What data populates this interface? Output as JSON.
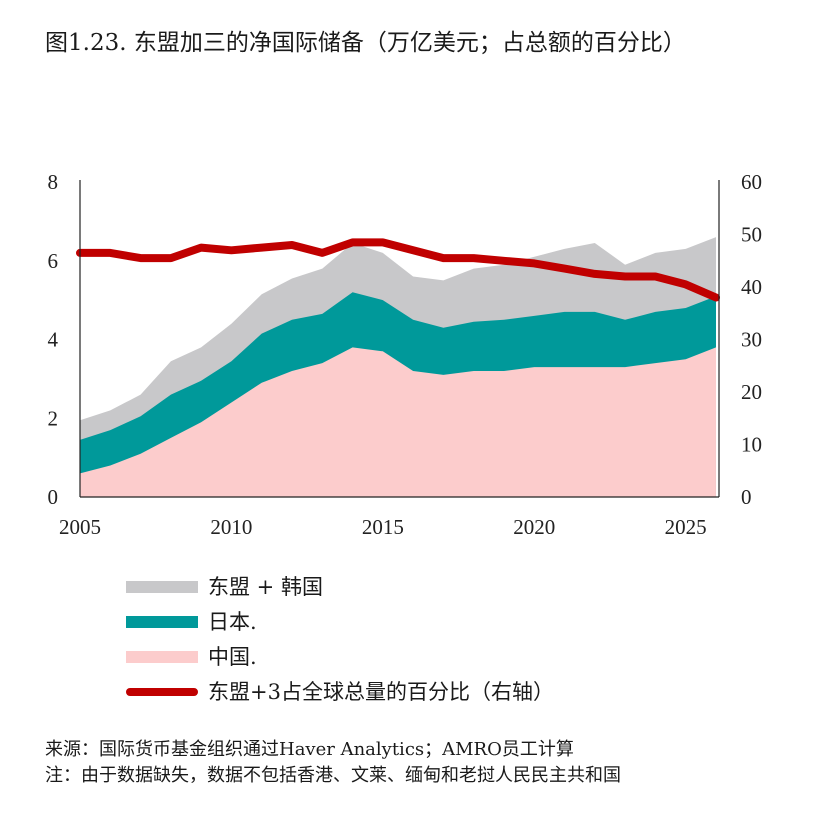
{
  "title": "图1.23. 东盟加三的净国际储备（万亿美元；占总额的百分比）",
  "notes": {
    "source": "来源：国际货币基金组织通过Haver Analytics；AMRO员工计算",
    "note": "注：由于数据缺失，数据不包括香港、文莱、缅甸和老挝人民民主共和国"
  },
  "chart_data": {
    "type": "area",
    "x_ticks": [
      2005,
      2010,
      2015,
      2020,
      2025
    ],
    "xlim": [
      2005,
      2026.1
    ],
    "y_left_ticks": [
      0,
      2,
      4,
      6,
      8
    ],
    "ylim_left": [
      0,
      8
    ],
    "y_right_ticks": [
      0,
      10,
      20,
      30,
      40,
      50,
      60
    ],
    "ylim_right": [
      0,
      60
    ],
    "x": [
      2005,
      2006,
      2007,
      2008,
      2009,
      2010,
      2011,
      2012,
      2013,
      2014,
      2015,
      2016,
      2017,
      2018,
      2019,
      2020,
      2021,
      2022,
      2023,
      2024,
      2025,
      2026
    ],
    "series": [
      {
        "name": "中国.",
        "axis": "left",
        "color": "#fccccc",
        "values": [
          0.6,
          0.8,
          1.1,
          1.5,
          1.9,
          2.4,
          2.9,
          3.2,
          3.4,
          3.8,
          3.7,
          3.2,
          3.1,
          3.2,
          3.2,
          3.3,
          3.3,
          3.3,
          3.3,
          3.4,
          3.5,
          3.8
        ]
      },
      {
        "name": "日本.",
        "axis": "left",
        "color": "#00999a",
        "values": [
          1.45,
          1.7,
          2.05,
          2.6,
          2.95,
          3.45,
          4.15,
          4.5,
          4.65,
          5.2,
          5.0,
          4.5,
          4.3,
          4.45,
          4.5,
          4.6,
          4.7,
          4.7,
          4.5,
          4.7,
          4.8,
          5.1
        ]
      },
      {
        "name": "东盟 + 韩国",
        "axis": "left",
        "color": "#c8c8ca",
        "values": [
          1.95,
          2.2,
          2.6,
          3.45,
          3.8,
          4.4,
          5.15,
          5.55,
          5.8,
          6.45,
          6.2,
          5.6,
          5.5,
          5.8,
          5.9,
          6.1,
          6.3,
          6.45,
          5.9,
          6.2,
          6.3,
          6.6
        ]
      },
      {
        "name": "东盟+3占全球总量的百分比（右轴）",
        "axis": "right",
        "type": "line",
        "color": "#c00000",
        "values": [
          46.5,
          46.5,
          45.5,
          45.5,
          47.5,
          47.0,
          47.5,
          48.0,
          46.5,
          48.5,
          48.5,
          47.0,
          45.5,
          45.5,
          45.0,
          44.5,
          43.5,
          42.5,
          42.0,
          42.0,
          40.5,
          38.0
        ]
      }
    ]
  }
}
